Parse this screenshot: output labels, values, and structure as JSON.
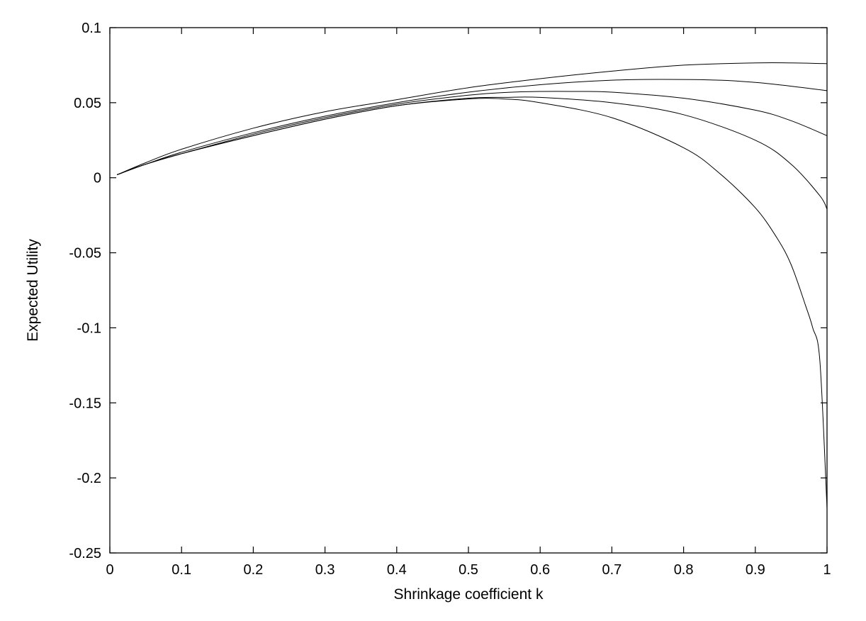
{
  "chart_data": {
    "type": "line",
    "title": "",
    "xlabel": "Shrinkage coefficient k",
    "ylabel": "Expected Utility",
    "xlim": [
      0,
      1
    ],
    "ylim": [
      -0.25,
      0.1
    ],
    "grid": false,
    "legend": "none",
    "line_color": "#000000",
    "x_ticks": [
      {
        "value": 0,
        "label": "0"
      },
      {
        "value": 0.1,
        "label": "0.1"
      },
      {
        "value": 0.2,
        "label": "0.2"
      },
      {
        "value": 0.3,
        "label": "0.3"
      },
      {
        "value": 0.4,
        "label": "0.4"
      },
      {
        "value": 0.5,
        "label": "0.5"
      },
      {
        "value": 0.6,
        "label": "0.6"
      },
      {
        "value": 0.7,
        "label": "0.7"
      },
      {
        "value": 0.8,
        "label": "0.8"
      },
      {
        "value": 0.9,
        "label": "0.9"
      },
      {
        "value": 1,
        "label": "1"
      }
    ],
    "y_ticks": [
      {
        "value": 0.1,
        "label": "0.1"
      },
      {
        "value": 0.05,
        "label": "0.05"
      },
      {
        "value": 0,
        "label": "0"
      },
      {
        "value": -0.05,
        "label": "-0.05"
      },
      {
        "value": -0.1,
        "label": "-0.1"
      },
      {
        "value": -0.15,
        "label": "-0.15"
      },
      {
        "value": -0.2,
        "label": "-0.2"
      },
      {
        "value": -0.25,
        "label": "-0.25"
      }
    ],
    "series": [
      {
        "x": [
          0.01,
          0.05,
          0.1,
          0.2,
          0.3,
          0.4,
          0.5,
          0.6,
          0.7,
          0.8,
          0.9,
          0.95,
          1.0
        ],
        "y": [
          0.002,
          0.01,
          0.019,
          0.033,
          0.044,
          0.052,
          0.06,
          0.066,
          0.071,
          0.075,
          0.0765,
          0.0765,
          0.076
        ]
      },
      {
        "x": [
          0.01,
          0.05,
          0.1,
          0.2,
          0.3,
          0.4,
          0.5,
          0.6,
          0.7,
          0.77,
          0.85,
          0.9,
          0.95,
          1.0
        ],
        "y": [
          0.002,
          0.009,
          0.017,
          0.03,
          0.041,
          0.05,
          0.057,
          0.062,
          0.065,
          0.0655,
          0.065,
          0.0635,
          0.061,
          0.058
        ]
      },
      {
        "x": [
          0.01,
          0.05,
          0.1,
          0.2,
          0.3,
          0.4,
          0.5,
          0.55,
          0.6,
          0.65,
          0.7,
          0.8,
          0.9,
          0.95,
          1.0
        ],
        "y": [
          0.002,
          0.009,
          0.016,
          0.029,
          0.04,
          0.049,
          0.055,
          0.0568,
          0.0575,
          0.0575,
          0.057,
          0.053,
          0.045,
          0.038,
          0.028
        ]
      },
      {
        "x": [
          0.01,
          0.05,
          0.1,
          0.2,
          0.3,
          0.4,
          0.5,
          0.55,
          0.6,
          0.7,
          0.8,
          0.9,
          0.95,
          0.99,
          1.0
        ],
        "y": [
          0.002,
          0.009,
          0.016,
          0.028,
          0.039,
          0.048,
          0.053,
          0.0535,
          0.0535,
          0.05,
          0.042,
          0.025,
          0.009,
          -0.012,
          -0.021
        ]
      },
      {
        "x": [
          0.01,
          0.05,
          0.1,
          0.2,
          0.3,
          0.4,
          0.5,
          0.55,
          0.6,
          0.7,
          0.8,
          0.85,
          0.9,
          0.93,
          0.95,
          0.97,
          0.98,
          0.99,
          1.0
        ],
        "y": [
          0.002,
          0.009,
          0.016,
          0.028,
          0.039,
          0.048,
          0.0525,
          0.0525,
          0.05,
          0.04,
          0.02,
          0.003,
          -0.02,
          -0.04,
          -0.058,
          -0.085,
          -0.1,
          -0.122,
          -0.22
        ]
      }
    ]
  }
}
